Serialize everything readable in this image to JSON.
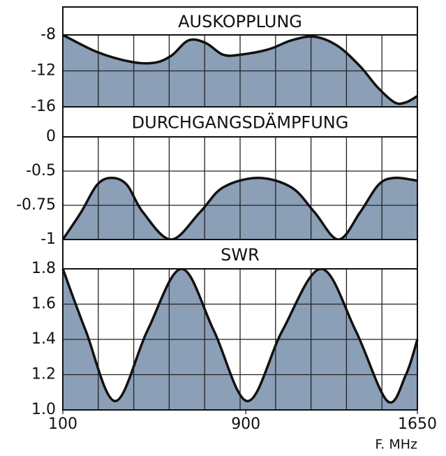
{
  "chart_data": [
    {
      "type": "area",
      "title": "AUSKOPPLUNG",
      "color": "#8b9fb7",
      "x": [
        100,
        250,
        400,
        500,
        575,
        650,
        725,
        800,
        875,
        1000,
        1100,
        1200,
        1300,
        1400,
        1475,
        1550,
        1600,
        1650
      ],
      "values": [
        -8,
        -9.9,
        -11,
        -11.1,
        -10.3,
        -8.6,
        -8.9,
        -10.2,
        -10.2,
        -9.6,
        -8.6,
        -8.2,
        -9.2,
        -11.5,
        -13.8,
        -15.5,
        -15.5,
        -14.8
      ],
      "xlim": [
        100,
        1650
      ],
      "ylim": [
        -16,
        -8
      ],
      "yticks": [
        -8,
        -12,
        -16
      ]
    },
    {
      "type": "area",
      "title": "DURCHGANGSDÄMPFUNG",
      "color": "#8b9fb7",
      "x": [
        100,
        180,
        250,
        313,
        380,
        450,
        573,
        700,
        800,
        954,
        1100,
        1200,
        1305,
        1400,
        1480,
        1549,
        1650
      ],
      "values": [
        -1,
        -0.8,
        -0.6,
        -0.55,
        -0.6,
        -0.8,
        -1,
        -0.8,
        -0.62,
        -0.55,
        -0.62,
        -0.8,
        -1,
        -0.8,
        -0.6,
        -0.55,
        -0.57
      ],
      "xlim": [
        100,
        1650
      ],
      "ylim": [
        -1,
        0
      ],
      "yticks": [
        0,
        -0.5,
        -0.75,
        -1
      ]
    },
    {
      "type": "area",
      "title": "SWR",
      "color": "#8b9fb7",
      "x": [
        100,
        200,
        329,
        470,
        619,
        760,
        908,
        1060,
        1229,
        1380,
        1519,
        1600,
        1650
      ],
      "values": [
        1.8,
        1.45,
        1.05,
        1.45,
        1.8,
        1.45,
        1.05,
        1.45,
        1.8,
        1.45,
        1.05,
        1.2,
        1.4
      ],
      "xlim": [
        100,
        1650
      ],
      "ylim": [
        1,
        1.8
      ],
      "yticks": [
        1.8,
        1.6,
        1.4,
        1.2,
        {
          "value": 1,
          "label": "1.0"
        }
      ],
      "xticks": [
        100,
        900,
        1650
      ],
      "xlabel": "F. MHz"
    }
  ]
}
